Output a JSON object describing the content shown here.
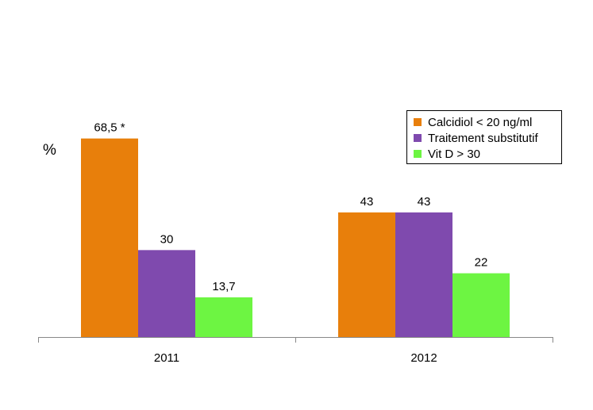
{
  "chart_data": {
    "type": "bar",
    "title": "",
    "xlabel": "",
    "ylabel": "%",
    "ylim": [
      0,
      100
    ],
    "grid": false,
    "legend_position": "top-right",
    "categories": [
      "2011",
      "2012"
    ],
    "series": [
      {
        "name": "Calcidiol < 20 ng/ml",
        "color": "#E87F0B",
        "values": [
          68.5,
          43
        ],
        "labels": [
          "68,5 *",
          "43"
        ]
      },
      {
        "name": "Traitement substitutif",
        "color": "#7F4AAE",
        "values": [
          30,
          43
        ],
        "labels": [
          "30",
          "43"
        ]
      },
      {
        "name": "Vit D > 30",
        "color": "#6DF542",
        "values": [
          13.7,
          22
        ],
        "labels": [
          "13,7",
          "22"
        ]
      }
    ]
  }
}
